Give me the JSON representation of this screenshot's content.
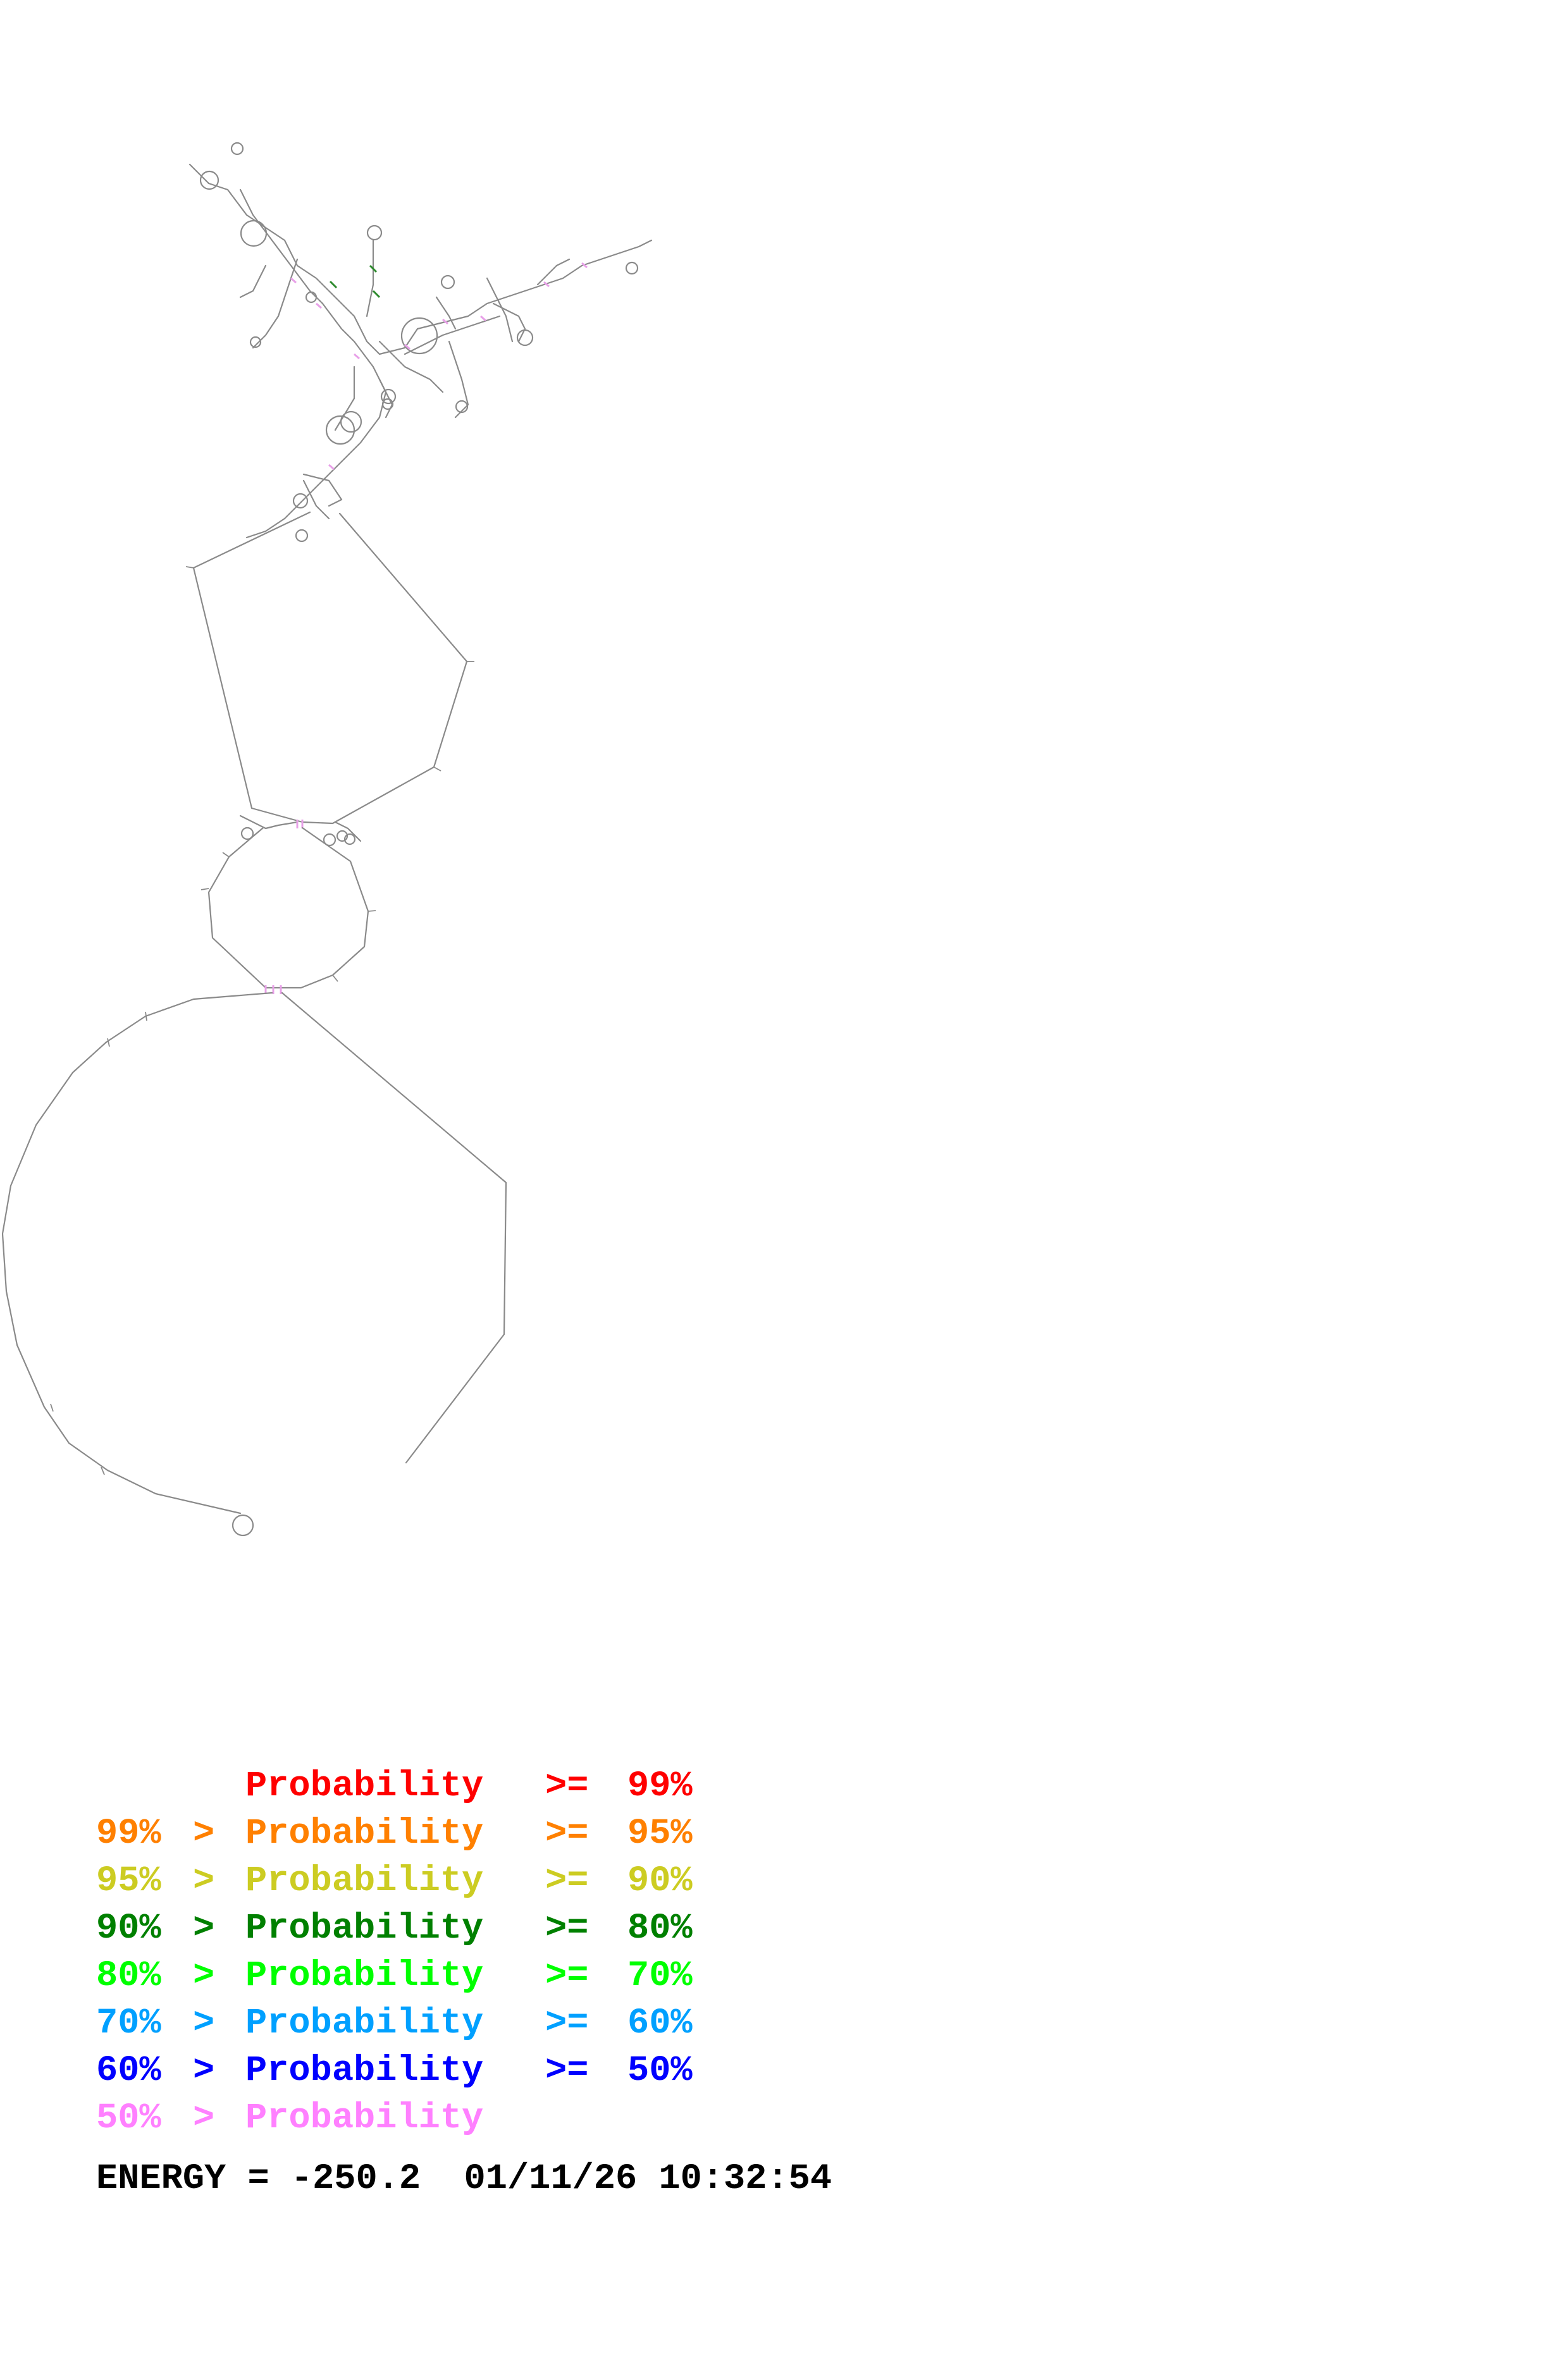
{
  "legend": {
    "word": "Probability",
    "comparator_low": ">",
    "comparator_high": ">=",
    "rows": [
      {
        "low": "",
        "high": "99%",
        "color": "#ff0000"
      },
      {
        "low": "99%",
        "high": "95%",
        "color": "#ff8000"
      },
      {
        "low": "95%",
        "high": "90%",
        "color": "#cccc22"
      },
      {
        "low": "90%",
        "high": "80%",
        "color": "#008000"
      },
      {
        "low": "80%",
        "high": "70%",
        "color": "#00ff00"
      },
      {
        "low": "70%",
        "high": "60%",
        "color": "#00a0ff"
      },
      {
        "low": "60%",
        "high": "50%",
        "color": "#0000ff"
      },
      {
        "low": "50%",
        "high": "",
        "color": "#ff80ff"
      }
    ]
  },
  "footer": {
    "energy_label": "ENERGY =",
    "energy_value": "-250.2",
    "date": "01/11/26",
    "time": "10:32:54"
  },
  "structure": {
    "backbone_color": "#8a8a8a",
    "pair_colors": [
      "#e8a0e8",
      "#2e8b2e"
    ]
  }
}
